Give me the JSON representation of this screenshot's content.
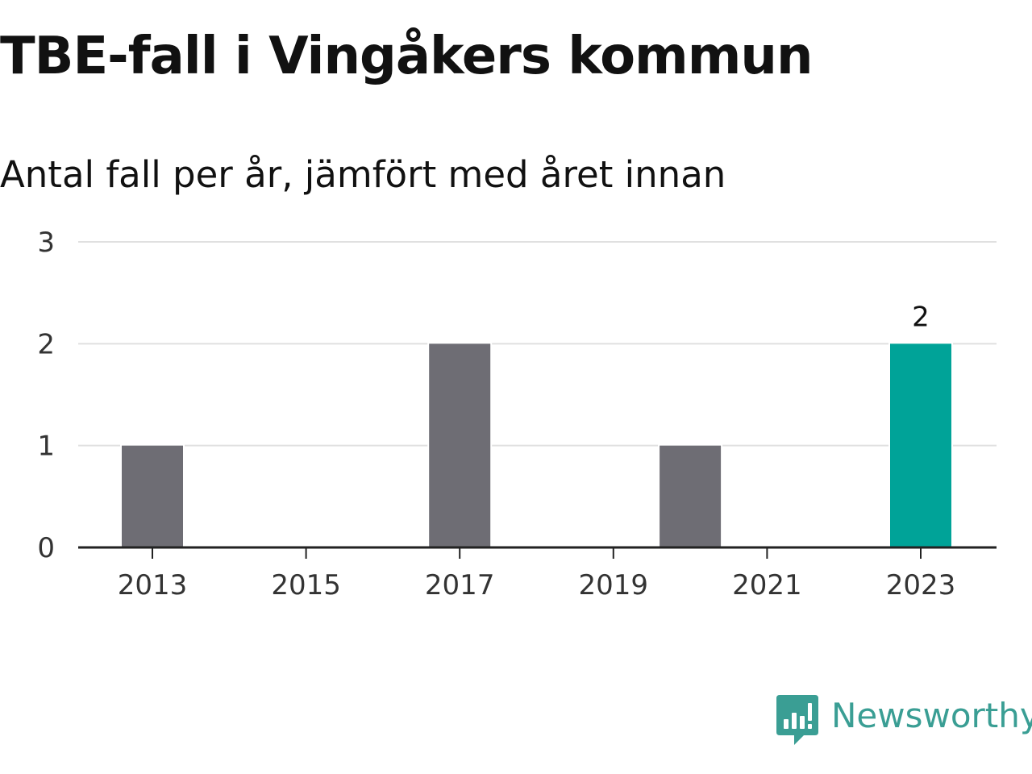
{
  "colors": {
    "bar_default": "#6e6d74",
    "bar_highlight": "#00a398",
    "gridline": "#e0e0e0",
    "axis": "#222222",
    "brand": "#3a9e94"
  },
  "brand": {
    "name": "Newsworthy",
    "icon": "newsworthy-logo-icon"
  },
  "chart_data": {
    "type": "bar",
    "title": "TBE-fall i Vingåkers kommun",
    "subtitle": "Antal fall per år, jämfört med året innan",
    "xlabel": "",
    "ylabel": "",
    "categories": [
      "2013",
      "2014",
      "2015",
      "2016",
      "2017",
      "2018",
      "2019",
      "2020",
      "2021",
      "2022",
      "2023"
    ],
    "values": [
      1,
      0,
      0,
      0,
      2,
      0,
      0,
      1,
      0,
      0,
      2
    ],
    "highlight_index": 10,
    "x_tick_labels": [
      "2013",
      "2015",
      "2017",
      "2019",
      "2021",
      "2023"
    ],
    "y_ticks": [
      0,
      1,
      2,
      3
    ],
    "ylim": [
      0,
      3
    ],
    "grid": true,
    "data_labels": [
      {
        "category": "2023",
        "text": "2"
      }
    ]
  }
}
